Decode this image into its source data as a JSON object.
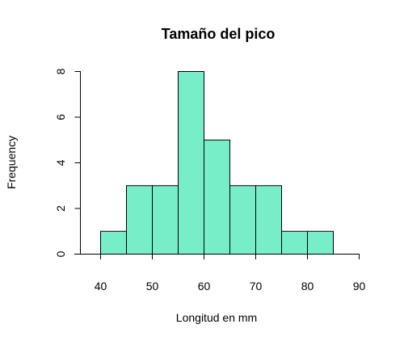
{
  "chart_data": {
    "type": "bar",
    "title": "Tamaño del pico",
    "xlabel": "Longitud en mm",
    "ylabel": "Frequency",
    "bins": [
      {
        "from": 40,
        "to": 45,
        "count": 1
      },
      {
        "from": 45,
        "to": 50,
        "count": 3
      },
      {
        "from": 50,
        "to": 55,
        "count": 3
      },
      {
        "from": 55,
        "to": 60,
        "count": 8
      },
      {
        "from": 60,
        "to": 65,
        "count": 5
      },
      {
        "from": 65,
        "to": 70,
        "count": 3
      },
      {
        "from": 70,
        "to": 75,
        "count": 3
      },
      {
        "from": 75,
        "to": 80,
        "count": 1
      },
      {
        "from": 80,
        "to": 85,
        "count": 1
      }
    ],
    "xlim": [
      35,
      90
    ],
    "ylim": [
      0,
      8
    ],
    "x_ticks": [
      "40",
      "50",
      "60",
      "70",
      "80",
      "90"
    ],
    "y_ticks": [
      "0",
      "2",
      "4",
      "6",
      "8"
    ],
    "bar_color": "#77EEC8",
    "grid": false
  }
}
